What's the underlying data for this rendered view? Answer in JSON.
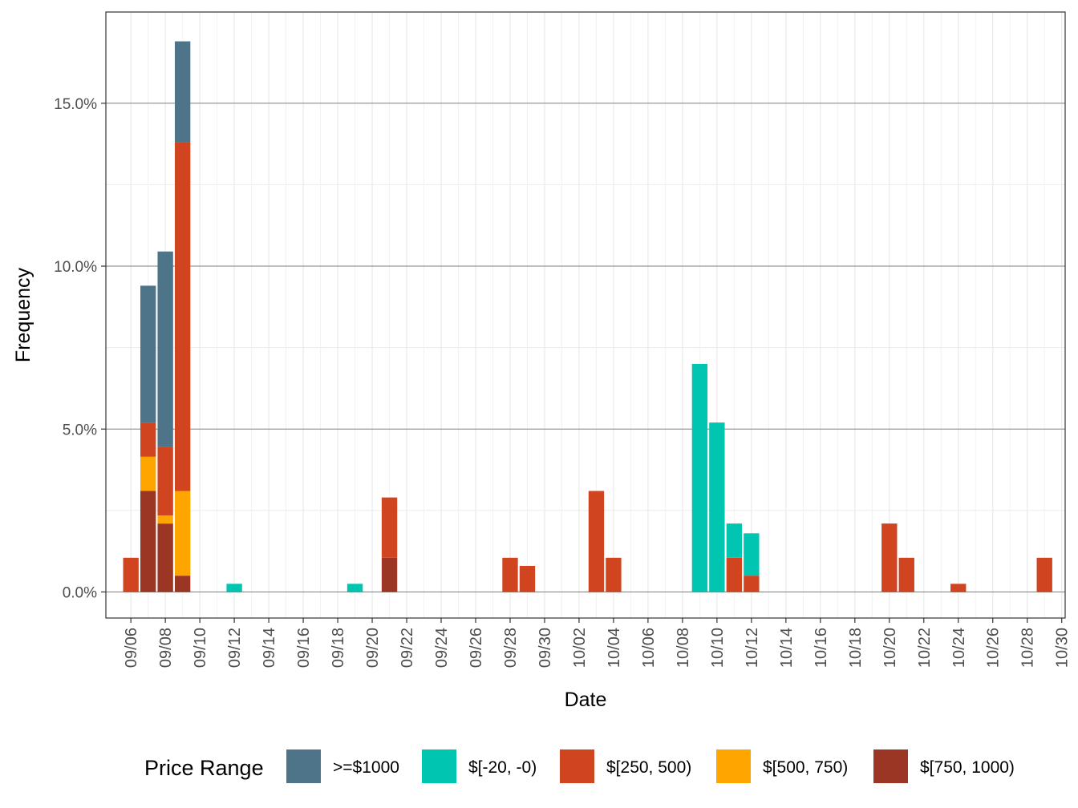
{
  "chart_data": {
    "type": "bar",
    "stacked": true,
    "xlabel": "Date",
    "ylabel": "Frequency",
    "xlim": [
      "2023-09-05",
      "2023-10-30"
    ],
    "ylim": [
      -0.8,
      17.8
    ],
    "y_unit": "%",
    "y_ticks": [
      0,
      5,
      10,
      15
    ],
    "y_tick_labels": [
      "0.0%",
      "5.0%",
      "10.0%",
      "15.0%"
    ],
    "x_ticks": [
      "2023-09-06",
      "2023-09-08",
      "2023-09-10",
      "2023-09-12",
      "2023-09-14",
      "2023-09-16",
      "2023-09-18",
      "2023-09-20",
      "2023-09-22",
      "2023-09-24",
      "2023-09-26",
      "2023-09-28",
      "2023-09-30",
      "2023-10-02",
      "2023-10-04",
      "2023-10-06",
      "2023-10-08",
      "2023-10-10",
      "2023-10-12",
      "2023-10-14",
      "2023-10-16",
      "2023-10-18",
      "2023-10-20",
      "2023-10-22",
      "2023-10-24",
      "2023-10-26",
      "2023-10-28",
      "2023-10-30"
    ],
    "x_tick_labels": [
      "09/06",
      "09/08",
      "09/10",
      "09/12",
      "09/14",
      "09/16",
      "09/18",
      "09/20",
      "09/22",
      "09/24",
      "09/26",
      "09/28",
      "09/30",
      "10/02",
      "10/04",
      "10/06",
      "10/08",
      "10/10",
      "10/12",
      "10/14",
      "10/16",
      "10/18",
      "10/20",
      "10/22",
      "10/24",
      "10/26",
      "10/28",
      "10/30"
    ],
    "grid": true,
    "legend_title": "Price Range",
    "legend_position": "bottom",
    "series": [
      {
        "name": ">=$1000",
        "color": "#4e7489",
        "points": [
          [
            "2023-09-07",
            4.2
          ],
          [
            "2023-09-08",
            6.0
          ],
          [
            "2023-09-09",
            3.1
          ]
        ]
      },
      {
        "name": "$[-20, -0)",
        "color": "#00c5b0",
        "points": [
          [
            "2023-09-12",
            0.25
          ],
          [
            "2023-09-19",
            0.25
          ],
          [
            "2023-10-09",
            7.0
          ],
          [
            "2023-10-10",
            5.2
          ],
          [
            "2023-10-11",
            1.05
          ],
          [
            "2023-10-12",
            1.3
          ]
        ]
      },
      {
        "name": "$[250, 500)",
        "color": "#d04420",
        "points": [
          [
            "2023-09-06",
            1.05
          ],
          [
            "2023-09-07",
            1.05
          ],
          [
            "2023-09-08",
            2.1
          ],
          [
            "2023-09-09",
            10.7
          ],
          [
            "2023-09-21",
            1.85
          ],
          [
            "2023-09-28",
            1.05
          ],
          [
            "2023-09-29",
            0.8
          ],
          [
            "2023-10-03",
            3.1
          ],
          [
            "2023-10-04",
            1.05
          ],
          [
            "2023-10-11",
            1.05
          ],
          [
            "2023-10-12",
            0.5
          ],
          [
            "2023-10-20",
            2.1
          ],
          [
            "2023-10-21",
            1.05
          ],
          [
            "2023-10-24",
            0.25
          ],
          [
            "2023-10-29",
            1.05
          ]
        ]
      },
      {
        "name": "$[500, 750)",
        "color": "#ffa500",
        "points": [
          [
            "2023-09-07",
            1.05
          ],
          [
            "2023-09-08",
            0.25
          ],
          [
            "2023-09-09",
            2.6
          ]
        ]
      },
      {
        "name": "$[750, 1000)",
        "color": "#9a3623",
        "points": [
          [
            "2023-09-07",
            3.1
          ],
          [
            "2023-09-08",
            2.1
          ],
          [
            "2023-09-09",
            0.5
          ],
          [
            "2023-09-21",
            1.05
          ]
        ]
      }
    ]
  }
}
